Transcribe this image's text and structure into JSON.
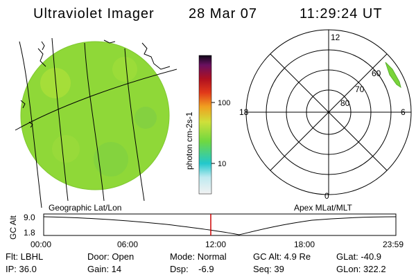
{
  "header": {
    "title": "Ultraviolet Imager",
    "date": "28 Mar 07",
    "time": "11:29:24 UT"
  },
  "colorbar": {
    "label": "photon cm-2s-1",
    "tick_labels": [
      "100",
      "10"
    ]
  },
  "polar": {
    "lat_labels": [
      "60",
      "70",
      "80"
    ],
    "mlt_labels": [
      "12",
      "18",
      "6",
      "0"
    ]
  },
  "panel_labels": {
    "left": "Geographic Lat/Lon",
    "right": "Apex MLat/MLT"
  },
  "altitude_chart": {
    "ylabel": "GC Alt",
    "yticks": [
      "9.0",
      "1.8"
    ],
    "xticks": [
      "00:00",
      "06:00",
      "12:00",
      "18:00",
      "23:59"
    ]
  },
  "info": {
    "flt": "Flt: LBHL",
    "ip": "IP: 36.0",
    "door": "Door: Open",
    "gain": "Gain: 14",
    "mode": "Mode: Normal",
    "dsp": "Dsp:    -6.9",
    "gcalt": "GC Alt: 4.9 Re",
    "seq": "Seq: 39",
    "glat": "GLat: -40.9",
    "glon": "GLon: 322.2"
  },
  "colors": {
    "earth_disk": "#8fd838",
    "colorbar_stops": [
      "#f2f2f2",
      "#22c8cc",
      "#7fdc40",
      "#dce03a",
      "#f2a020",
      "#e23a1a",
      "#b01020",
      "#301040"
    ],
    "marker": "#cc0000"
  }
}
